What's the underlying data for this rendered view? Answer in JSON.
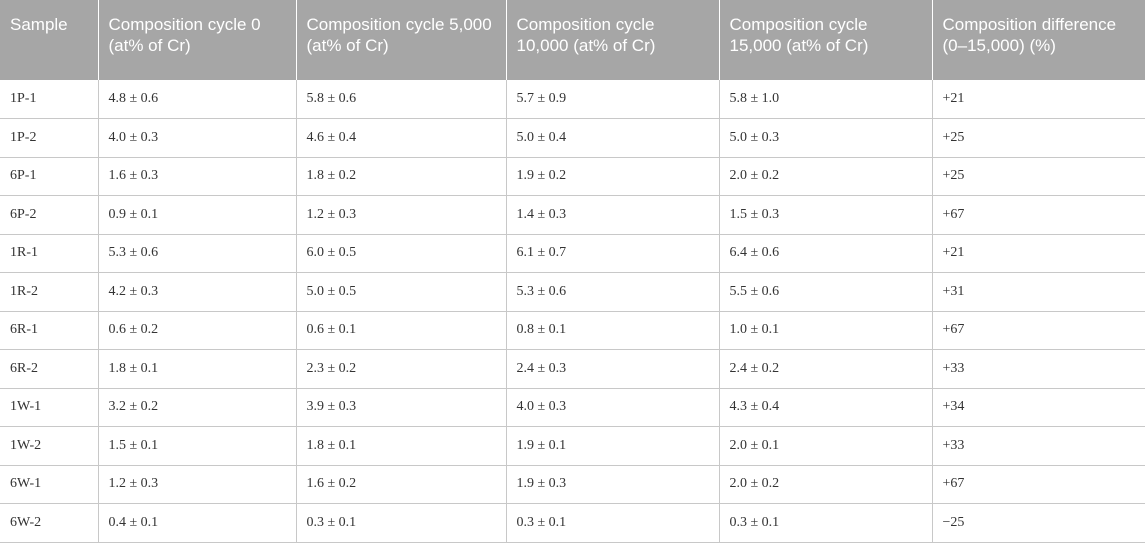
{
  "table": {
    "headers": [
      "Sample",
      "Composition cycle 0 (at% of Cr)",
      "Composition cycle 5,000 (at% of Cr)",
      "Composition cycle 10,000 (at% of Cr)",
      "Composition cycle 15,000 (at% of Cr)",
      "Composition difference (0–15,000) (%)"
    ],
    "rows": [
      [
        "1P-1",
        "4.8 ± 0.6",
        "5.8 ± 0.6",
        "5.7 ± 0.9",
        "5.8 ± 1.0",
        "+21"
      ],
      [
        "1P-2",
        "4.0 ± 0.3",
        "4.6 ± 0.4",
        "5.0 ± 0.4",
        "5.0 ± 0.3",
        "+25"
      ],
      [
        "6P-1",
        "1.6 ± 0.3",
        "1.8 ± 0.2",
        "1.9 ± 0.2",
        "2.0 ± 0.2",
        "+25"
      ],
      [
        "6P-2",
        "0.9 ± 0.1",
        "1.2 ± 0.3",
        "1.4 ± 0.3",
        "1.5 ± 0.3",
        "+67"
      ],
      [
        "1R-1",
        "5.3 ± 0.6",
        "6.0 ± 0.5",
        "6.1 ± 0.7",
        "6.4 ± 0.6",
        "+21"
      ],
      [
        "1R-2",
        "4.2 ± 0.3",
        "5.0 ± 0.5",
        "5.3 ± 0.6",
        "5.5 ± 0.6",
        "+31"
      ],
      [
        "6R-1",
        "0.6 ± 0.2",
        "0.6 ± 0.1",
        "0.8 ± 0.1",
        "1.0 ± 0.1",
        "+67"
      ],
      [
        "6R-2",
        "1.8 ± 0.1",
        "2.3 ± 0.2",
        "2.4 ± 0.3",
        "2.4 ± 0.2",
        "+33"
      ],
      [
        "1W-1",
        "3.2 ± 0.2",
        "3.9 ± 0.3",
        "4.0 ± 0.3",
        "4.3 ± 0.4",
        "+34"
      ],
      [
        "1W-2",
        "1.5 ± 0.1",
        "1.8 ± 0.1",
        "1.9 ± 0.1",
        "2.0 ± 0.1",
        "+33"
      ],
      [
        "6W-1",
        "1.2 ± 0.3",
        "1.6 ± 0.2",
        "1.9 ± 0.3",
        "2.0 ± 0.2",
        "+67"
      ],
      [
        "6W-2",
        "0.4 ± 0.1",
        "0.3 ± 0.1",
        "0.3 ± 0.1",
        "0.3 ± 0.1",
        "−25"
      ]
    ]
  },
  "colors": {
    "header_background": "#a6a6a6",
    "header_text": "#ffffff",
    "grid_line": "#c8c8c8",
    "body_text": "#333333"
  }
}
